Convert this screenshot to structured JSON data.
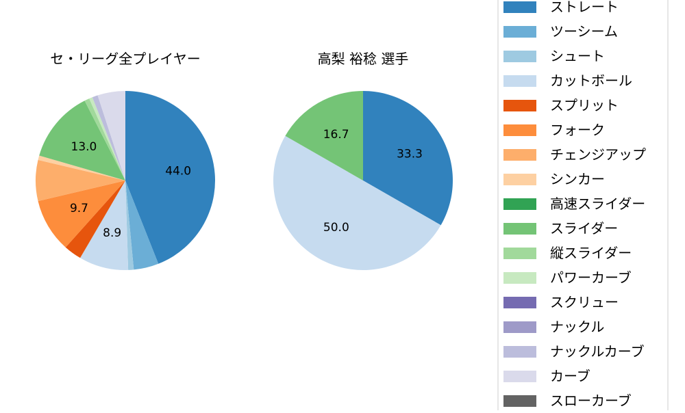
{
  "legend": {
    "placement": "right",
    "entries": [
      {
        "label": "ストレート",
        "color": "#3182bd"
      },
      {
        "label": "ツーシーム",
        "color": "#6baed6"
      },
      {
        "label": "シュート",
        "color": "#9ecae1"
      },
      {
        "label": "カットボール",
        "color": "#c6dbef"
      },
      {
        "label": "スプリット",
        "color": "#e6550d"
      },
      {
        "label": "フォーク",
        "color": "#fd8d3c"
      },
      {
        "label": "チェンジアップ",
        "color": "#fdae6b"
      },
      {
        "label": "シンカー",
        "color": "#fdd0a2"
      },
      {
        "label": "高速スライダー",
        "color": "#31a354"
      },
      {
        "label": "スライダー",
        "color": "#74c476"
      },
      {
        "label": "縦スライダー",
        "color": "#a1d99b"
      },
      {
        "label": "パワーカーブ",
        "color": "#c7e9c0"
      },
      {
        "label": "スクリュー",
        "color": "#756bb1"
      },
      {
        "label": "ナックル",
        "color": "#9e9ac8"
      },
      {
        "label": "ナックルカーブ",
        "color": "#bcbddc"
      },
      {
        "label": "カーブ",
        "color": "#dadaeb"
      },
      {
        "label": "スローカーブ",
        "color": "#636363"
      }
    ]
  },
  "chart_data": [
    {
      "type": "pie",
      "title": "セ・リーグ全プレイヤー",
      "start_angle": 90,
      "direction": "clockwise",
      "slices": [
        {
          "category": "ストレート",
          "value": 44.0,
          "label": "44.0"
        },
        {
          "category": "ツーシーム",
          "value": 4.5
        },
        {
          "category": "シュート",
          "value": 1.0
        },
        {
          "category": "カットボール",
          "value": 8.9,
          "label": "8.9"
        },
        {
          "category": "スプリット",
          "value": 3.2
        },
        {
          "category": "フォーク",
          "value": 9.7,
          "label": "9.7"
        },
        {
          "category": "チェンジアップ",
          "value": 7.4
        },
        {
          "category": "シンカー",
          "value": 0.8
        },
        {
          "category": "スライダー",
          "value": 13.0,
          "label": "13.0"
        },
        {
          "category": "縦スライダー",
          "value": 0.9
        },
        {
          "category": "パワーカーブ",
          "value": 0.6
        },
        {
          "category": "ナックルカーブ",
          "value": 1.0
        },
        {
          "category": "カーブ",
          "value": 5.0
        }
      ]
    },
    {
      "type": "pie",
      "title": "高梨 裕稔  選手",
      "start_angle": 90,
      "direction": "clockwise",
      "slices": [
        {
          "category": "ストレート",
          "value": 33.3,
          "label": "33.3"
        },
        {
          "category": "カットボール",
          "value": 50.0,
          "label": "50.0"
        },
        {
          "category": "スライダー",
          "value": 16.7,
          "label": "16.7"
        }
      ]
    }
  ]
}
